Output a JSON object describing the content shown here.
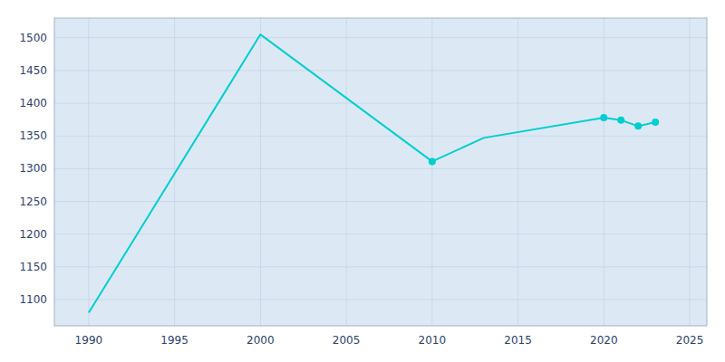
{
  "chart_data": {
    "type": "line",
    "x": [
      1990,
      2000,
      2010,
      2013,
      2020,
      2021,
      2022,
      2023
    ],
    "series": [
      {
        "color": "#00CED1",
        "values": [
          1080,
          1505,
          1311,
          1347,
          1378,
          1374,
          1365,
          1371
        ]
      },
      {
        "type": "scatter",
        "marker": "circle",
        "color": "#00CED1",
        "values": [
          null,
          null,
          1311,
          null,
          1378,
          1374,
          1365,
          1371
        ]
      }
    ],
    "xlim": [
      1988,
      2026
    ],
    "ylim": [
      1060,
      1530
    ],
    "xticks": [
      1990,
      1995,
      2000,
      2005,
      2010,
      2015,
      2020,
      2025
    ],
    "yticks": [
      1100,
      1150,
      1200,
      1250,
      1300,
      1350,
      1400,
      1450,
      1500
    ],
    "grid": true
  }
}
